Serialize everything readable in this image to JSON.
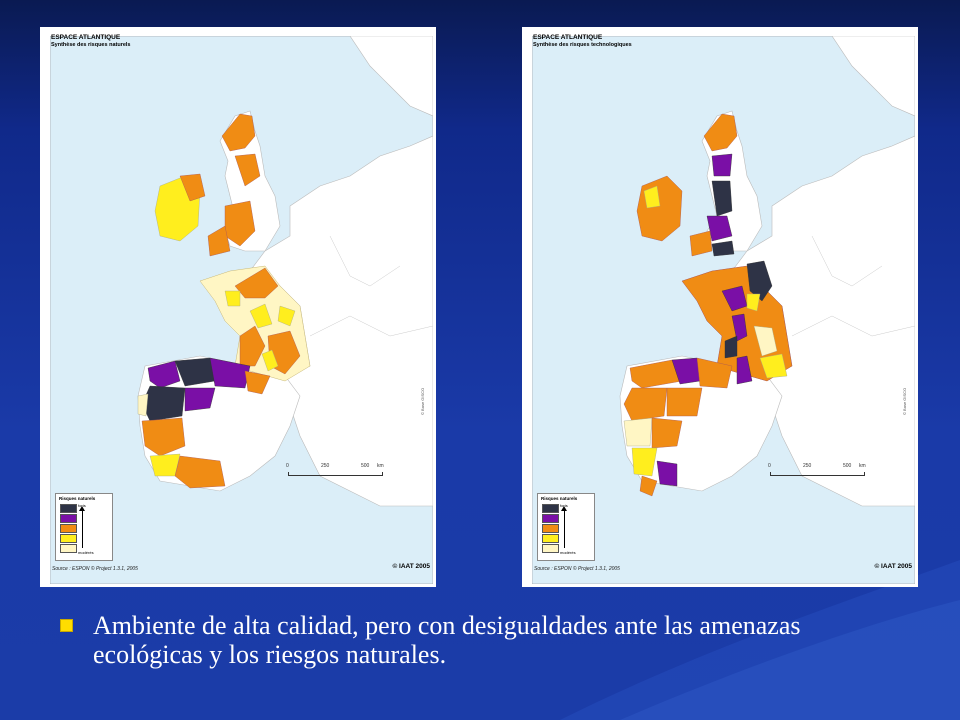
{
  "maps": [
    {
      "title": "ESPACE ATLANTIQUE",
      "subtitle": "Synthèse des risques naturels",
      "legend_title": "Risques naturels",
      "legend_high": "forts",
      "legend_low": "modérés",
      "scale_labels": [
        "0",
        "250",
        "500",
        "km"
      ],
      "source": "Source : ESPON © Project 1.3.1, 2005",
      "copyright": "© IAAT 2005",
      "credit": "© Base GISCO"
    },
    {
      "title": "ESPACE ATLANTIQUE",
      "subtitle": "Synthèse des risques technologiques",
      "legend_title": "Risques naturels",
      "legend_high": "forts",
      "legend_low": "modérés",
      "scale_labels": [
        "0",
        "250",
        "500",
        "km"
      ],
      "source": "Source : ESPON © Project 1.3.1, 2005",
      "copyright": "© IAAT 2005",
      "credit": "© Base GISCO"
    }
  ],
  "legend_colors": [
    "#2e3346",
    "#7a0fa6",
    "#f08c14",
    "#ffee1e",
    "#fff6c4"
  ],
  "caption": "Ambiente de alta calidad, pero con desigualdades ante las amenazas ecológicas y los riesgos naturales.",
  "colors": {
    "sea": "#dbeef8",
    "land": "#ffffff",
    "strong": "#2e3346",
    "purple": "#7a0fa6",
    "orange": "#f08c14",
    "yellow": "#ffee1e",
    "pale": "#fff6c4"
  }
}
